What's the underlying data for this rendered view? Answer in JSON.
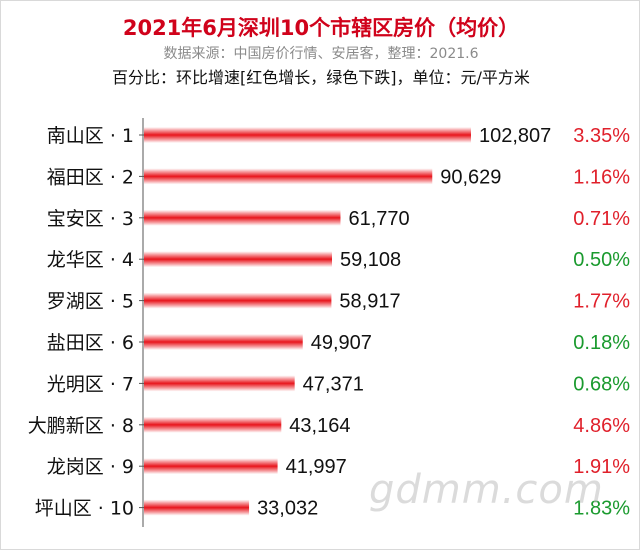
{
  "title": "2021年6月深圳10个市辖区房价（均价）",
  "source_line": "数据来源：中国房价行情、安居客，整理：2021.6",
  "note_line": "百分比：环比增速[红色增长，绿色下跌]，单位：元/平方米",
  "watermark": "gdmm.com",
  "colors": {
    "bar": "#e8151c",
    "up": "#e0202b",
    "down": "#1a9a2e",
    "title": "#d0021b"
  },
  "chart_data": {
    "type": "bar",
    "orientation": "horizontal",
    "categories": [
      "南山区 · 1",
      "福田区 · 2",
      "宝安区 · 3",
      "龙华区 · 4",
      "罗湖区 · 5",
      "盐田区 · 6",
      "光明区 · 7",
      "大鹏新区 · 8",
      "龙岗区 · 9",
      "坪山区 · 10"
    ],
    "values": [
      102807,
      90629,
      61770,
      59108,
      58917,
      49907,
      47371,
      43164,
      41997,
      33032
    ],
    "value_labels": [
      "102,807",
      "90,629",
      "61,770",
      "59,108",
      "58,917",
      "49,907",
      "47,371",
      "43,164",
      "41,997",
      "33,032"
    ],
    "changes": [
      "3.35%",
      "1.16%",
      "0.71%",
      "0.50%",
      "1.77%",
      "0.18%",
      "0.68%",
      "4.86%",
      "1.91%",
      "1.83%"
    ],
    "change_direction": [
      "up",
      "up",
      "up",
      "down",
      "up",
      "down",
      "down",
      "up",
      "up",
      "down"
    ],
    "unit": "元/平方米",
    "grid": false,
    "legend": "none"
  }
}
